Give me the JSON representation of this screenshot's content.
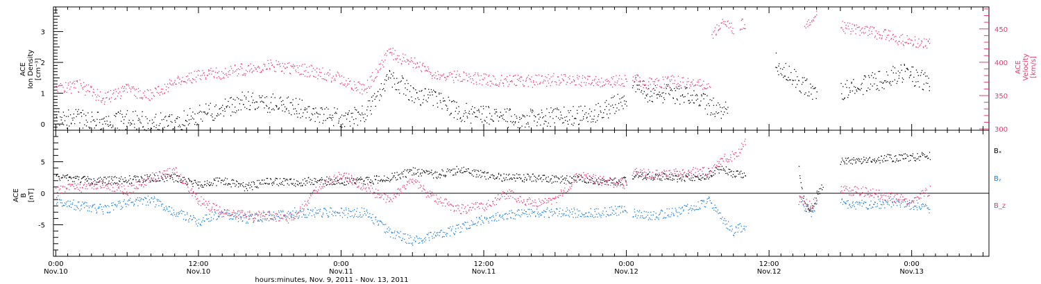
{
  "chart_data": [
    {
      "type": "scatter",
      "panel": "plasma",
      "left_axis_label": [
        "ACE",
        "Ion Density",
        "[cm⁻³]"
      ],
      "right_axis_label": [
        "ACE",
        "Velocity",
        "[km/s]"
      ],
      "ylim_left": [
        -0.2,
        3.8
      ],
      "ylim_right": [
        298,
        483
      ],
      "yticks_left": [
        0,
        1,
        2,
        3
      ],
      "yticks_right": [
        300,
        350,
        400,
        450
      ],
      "colors": {
        "density": "#000000",
        "velocity": "#e8386b"
      },
      "series": [
        {
          "name": "Ion Density",
          "axis": "left",
          "color": "#000000",
          "segments": [
            {
              "x": [
                0,
                2,
                4,
                6,
                8,
                10,
                12,
                14,
                16,
                18,
                20,
                22,
                24,
                26,
                28,
                30,
                32,
                34,
                36,
                38,
                40,
                42,
                44,
                46,
                48
              ],
              "y": [
                0.15,
                0.2,
                0.1,
                0.15,
                0.1,
                0.05,
                0.3,
                0.5,
                0.8,
                0.7,
                0.6,
                0.3,
                0.2,
                0.3,
                1.6,
                1.0,
                0.8,
                0.4,
                0.3,
                0.2,
                0.2,
                0.25,
                0.3,
                0.4,
                0.9
              ]
            },
            {
              "x": [
                48.5,
                50,
                52,
                54,
                55,
                56.5
              ],
              "y": [
                1.3,
                1.0,
                1.0,
                0.8,
                0.6,
                0.4
              ]
            },
            {
              "x": [
                60.5,
                61,
                62,
                63,
                64
              ],
              "y": [
                2.1,
                1.8,
                1.5,
                1.2,
                1.0
              ]
            },
            {
              "x": [
                66,
                68,
                70,
                71,
                72,
                73.5
              ],
              "y": [
                1.1,
                1.3,
                1.5,
                1.7,
                1.6,
                1.3
              ]
            }
          ]
        },
        {
          "name": "Velocity",
          "axis": "right",
          "color": "#e8386b",
          "segments": [
            {
              "x": [
                0,
                2,
                4,
                6,
                8,
                10,
                12,
                14,
                16,
                18,
                20,
                22,
                24,
                26,
                28,
                30,
                32,
                34,
                36,
                38,
                40,
                42,
                44,
                46,
                48
              ],
              "y": [
                360,
                365,
                345,
                360,
                350,
                370,
                380,
                385,
                390,
                395,
                392,
                385,
                375,
                360,
                415,
                400,
                380,
                378,
                375,
                372,
                372,
                375,
                372,
                373,
                372
              ]
            },
            {
              "x": [
                48.5,
                50,
                52,
                54,
                55
              ],
              "y": [
                375,
                368,
                372,
                370,
                365
              ]
            },
            {
              "x": [
                55.2,
                56,
                56.5,
                57
              ],
              "y": [
                440,
                460,
                458,
                450
              ]
            },
            {
              "x": [
                57.5,
                58
              ],
              "y": [
                458,
                460
              ]
            },
            {
              "x": [
                63,
                63.5,
                64
              ],
              "y": [
                455,
                465,
                470
              ]
            },
            {
              "x": [
                66,
                68,
                70,
                72,
                73.5
              ],
              "y": [
                453,
                447,
                440,
                430,
                430
              ]
            }
          ]
        }
      ]
    },
    {
      "type": "scatter",
      "panel": "magnetic",
      "left_axis_label": [
        "ACE",
        "B",
        "[nT]"
      ],
      "ylim": [
        -10,
        10
      ],
      "yticks": [
        -5,
        0,
        5
      ],
      "legend": [
        "Bₓ",
        "Bᵧ",
        "B_z"
      ],
      "legend_placement": "right",
      "colors": {
        "Bx": "#000000",
        "By": "#1a7fd6",
        "Bz": "#e8386b"
      },
      "series": [
        {
          "name": "Bₓ",
          "color": "#000000",
          "segments": [
            {
              "x": [
                0,
                2,
                4,
                6,
                8,
                10,
                12,
                14,
                16,
                18,
                20,
                22,
                24,
                26,
                28,
                30,
                32,
                34,
                36,
                38,
                40,
                42,
                44,
                46,
                48
              ],
              "y": [
                2.5,
                2.2,
                2.0,
                2.2,
                2.5,
                2.5,
                1.5,
                2.0,
                1.0,
                2.0,
                1.8,
                2.0,
                2.0,
                2.0,
                2.5,
                3.5,
                3.0,
                3.8,
                3.0,
                2.5,
                2.5,
                2.2,
                2.3,
                2.0,
                2.0
              ]
            },
            {
              "x": [
                48.5,
                50,
                52,
                54,
                55,
                56,
                57,
                58
              ],
              "y": [
                3.0,
                2.8,
                2.5,
                2.5,
                3.0,
                4.0,
                3.0,
                3.0
              ]
            },
            {
              "x": [
                62.5,
                63,
                63.5,
                64,
                64.5
              ],
              "y": [
                4.0,
                -2.0,
                -3.0,
                0.0,
                1.0
              ]
            },
            {
              "x": [
                66,
                68,
                70,
                72,
                73.5
              ],
              "y": [
                5.2,
                5.3,
                5.6,
                5.8,
                6.0
              ]
            }
          ]
        },
        {
          "name": "Bᵧ",
          "color": "#1a7fd6",
          "segments": [
            {
              "x": [
                0,
                2,
                4,
                6,
                8,
                10,
                12,
                14,
                16,
                18,
                20,
                22,
                24,
                26,
                28,
                30,
                32,
                34,
                36,
                38,
                40,
                42,
                44,
                46,
                48
              ],
              "y": [
                -1.0,
                -2.0,
                -2.5,
                -1.5,
                -1.0,
                -3.0,
                -4.5,
                -3.0,
                -4.0,
                -3.5,
                -3.0,
                -3.0,
                -3.0,
                -3.0,
                -6.0,
                -7.5,
                -6.5,
                -5.5,
                -4.0,
                -3.5,
                -3.0,
                -3.0,
                -3.0,
                -3.0,
                -2.5
              ]
            },
            {
              "x": [
                48.5,
                50,
                52,
                54,
                55,
                56,
                57,
                58
              ],
              "y": [
                -3.0,
                -3.5,
                -3.0,
                -2.0,
                -1.0,
                -4.0,
                -6.0,
                -5.0
              ]
            },
            {
              "x": [
                62.5,
                63,
                63.5,
                64
              ],
              "y": [
                -1.0,
                -2.0,
                -3.0,
                -1.5
              ]
            },
            {
              "x": [
                66,
                68,
                70,
                72,
                73.5
              ],
              "y": [
                -1.5,
                -1.8,
                -1.5,
                -1.8,
                -2.5
              ]
            }
          ]
        },
        {
          "name": "B_z",
          "color": "#e8386b",
          "segments": [
            {
              "x": [
                0,
                2,
                4,
                6,
                8,
                10,
                12,
                14,
                16,
                18,
                20,
                22,
                24,
                26,
                28,
                30,
                32,
                34,
                36,
                38,
                40,
                42,
                44,
                46,
                48
              ],
              "y": [
                0.5,
                1.0,
                1.5,
                0.5,
                2.5,
                3.5,
                -1.0,
                -3.0,
                -3.5,
                -3.5,
                -4.0,
                1.0,
                3.0,
                1.0,
                -1.0,
                2.0,
                -1.0,
                -2.5,
                -2.0,
                0.0,
                -1.5,
                -1.0,
                3.0,
                2.0,
                1.5
              ]
            },
            {
              "x": [
                48.5,
                50,
                52,
                54,
                55,
                56,
                57,
                58
              ],
              "y": [
                3.5,
                3.0,
                3.2,
                3.5,
                3.5,
                5.5,
                6.0,
                8.0
              ]
            },
            {
              "x": [
                62.5,
                63,
                63.5,
                64
              ],
              "y": [
                -1.0,
                -1.5,
                -2.0,
                -1.0
              ]
            },
            {
              "x": [
                66,
                68,
                70,
                72,
                73.5
              ],
              "y": [
                0.5,
                0.3,
                -0.5,
                -1.2,
                0.5
              ]
            }
          ]
        }
      ]
    }
  ],
  "x_axis": {
    "ticks": [
      {
        "x": 0,
        "time": "0:00",
        "date": "Nov.10"
      },
      {
        "x": 12,
        "time": "12:00",
        "date": "Nov.10"
      },
      {
        "x": 24,
        "time": "0:00",
        "date": "Nov.11"
      },
      {
        "x": 36,
        "time": "12:00",
        "date": "Nov.11"
      },
      {
        "x": 48,
        "time": "0:00",
        "date": "Nov.12"
      },
      {
        "x": 60,
        "time": "12:00",
        "date": "Nov.12"
      },
      {
        "x": 72,
        "time": "0:00",
        "date": "Nov.13"
      }
    ],
    "xlim": [
      -0.2,
      78.5
    ],
    "label": "hours:minutes,  Nov.  9, 2011 - Nov. 13, 2011"
  }
}
